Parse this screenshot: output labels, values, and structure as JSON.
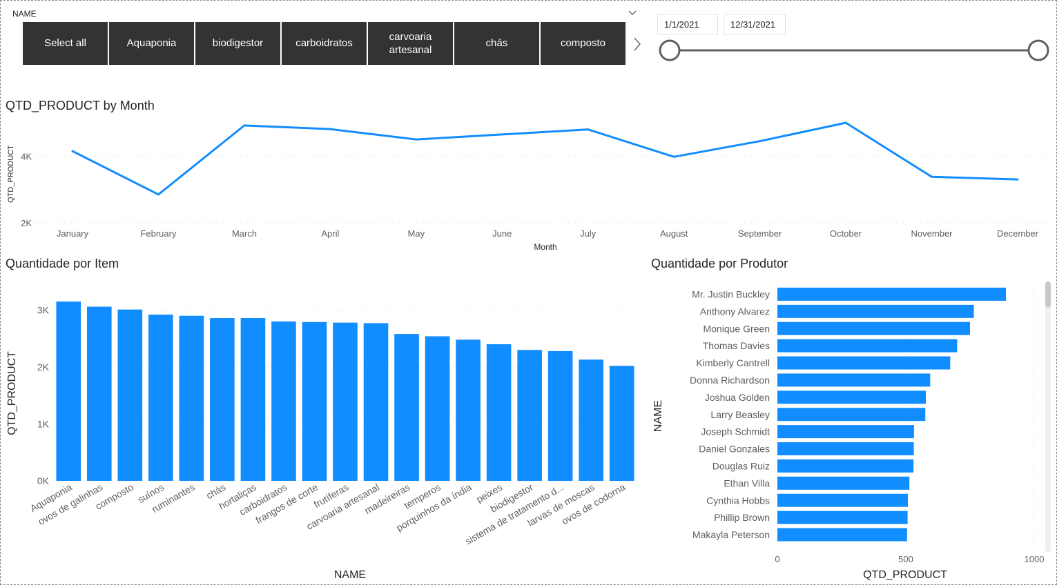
{
  "slicer": {
    "title": "NAME",
    "tiles": [
      "Select all",
      "Aquaponia",
      "biodigestor",
      "carboidratos",
      "carvoaria artesanal",
      "chás",
      "composto"
    ]
  },
  "date_range": {
    "start": "1/1/2021",
    "end": "12/31/2021",
    "start_fraction": 0,
    "end_fraction": 1
  },
  "colors": {
    "accent": "#118DFF",
    "tile_bg": "#333333",
    "slider_track": "#5f5f5f",
    "text": "#252423",
    "grid": "#d9d9d9"
  },
  "chart_data": [
    {
      "type": "line",
      "title": "QTD_PRODUCT by Month",
      "xlabel": "Month",
      "ylabel": "QTD_PRODUCT",
      "categories": [
        "January",
        "February",
        "March",
        "April",
        "May",
        "June",
        "July",
        "August",
        "September",
        "October",
        "November",
        "December"
      ],
      "values": [
        4150,
        2850,
        4920,
        4810,
        4500,
        4650,
        4800,
        3980,
        4450,
        5000,
        3380,
        3300
      ],
      "yticks": [
        2000,
        4000
      ],
      "ytick_labels": [
        "2K",
        "4K"
      ],
      "ylim": [
        2000,
        5000
      ],
      "grid": true
    },
    {
      "type": "bar",
      "title": "Quantidade por Item",
      "xlabel": "NAME",
      "ylabel": "QTD_PRODUCT",
      "categories": [
        "Aquaponia",
        "ovos de galinhas",
        "composto",
        "suínos",
        "ruminantes",
        "chás",
        "hortaliças",
        "carboidratos",
        "frangos de corte",
        "frutíferas",
        "carvoaria artesanal",
        "madeireiras",
        "temperos",
        "porquinhos da índia",
        "peixes",
        "biodigestor",
        "sistema de tratamento d...",
        "larvas de moscas",
        "ovos de codorna"
      ],
      "values": [
        3150,
        3060,
        3010,
        2920,
        2900,
        2860,
        2860,
        2800,
        2790,
        2780,
        2770,
        2580,
        2540,
        2480,
        2400,
        2300,
        2280,
        2130,
        2020
      ],
      "yticks": [
        0,
        1000,
        2000,
        3000
      ],
      "ytick_labels": [
        "0K",
        "1K",
        "2K",
        "3K"
      ],
      "ylim": [
        0,
        3300
      ],
      "grid": true
    },
    {
      "type": "bar",
      "orientation": "horizontal",
      "title": "Quantidade por Produtor",
      "xlabel": "QTD_PRODUCT",
      "ylabel": "NAME",
      "categories": [
        "Mr. Justin Buckley",
        "Anthony Alvarez",
        "Monique Green",
        "Thomas Davies",
        "Kimberly Cantrell",
        "Donna Richardson",
        "Joshua Golden",
        "Larry Beasley",
        "Joseph Schmidt",
        "Daniel Gonzales",
        "Douglas Ruiz",
        "Ethan Villa",
        "Cynthia Hobbs",
        "Phillip Brown",
        "Makayla Peterson"
      ],
      "values": [
        890,
        765,
        750,
        700,
        673,
        595,
        578,
        576,
        532,
        531,
        530,
        514,
        508,
        507,
        505
      ],
      "xticks": [
        0,
        500,
        1000
      ],
      "xtick_labels": [
        "0",
        "500",
        "1000"
      ],
      "xlim": [
        0,
        1000
      ],
      "grid": true
    }
  ]
}
